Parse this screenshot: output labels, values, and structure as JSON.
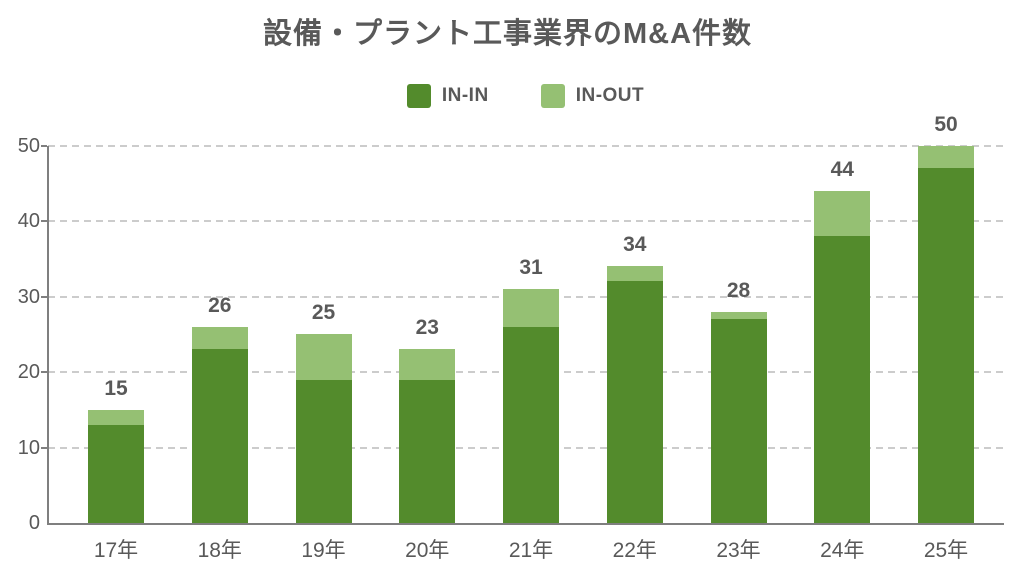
{
  "chart_data": {
    "type": "bar",
    "stacked": true,
    "title": "設備・プラント工事業界のM&A件数",
    "categories": [
      "17年",
      "18年",
      "19年",
      "20年",
      "21年",
      "22年",
      "23年",
      "24年",
      "25年"
    ],
    "series": [
      {
        "name": "IN-IN",
        "color": "#538b2c",
        "values": [
          13,
          23,
          19,
          19,
          26,
          32,
          27,
          38,
          47
        ]
      },
      {
        "name": "IN-OUT",
        "color": "#95c073",
        "values": [
          2,
          3,
          6,
          4,
          5,
          2,
          1,
          6,
          3
        ]
      }
    ],
    "totals": [
      15,
      26,
      25,
      23,
      31,
      34,
      28,
      44,
      50
    ],
    "ylim": [
      0,
      50
    ],
    "yticks": [
      0,
      10,
      20,
      30,
      40,
      50
    ],
    "grid": "horizontal-dashed",
    "legend_position": "top-center"
  },
  "colors": {
    "text": "#595959",
    "gridline": "#cccccc",
    "axis": "#7f7f7f",
    "background": "#ffffff"
  }
}
